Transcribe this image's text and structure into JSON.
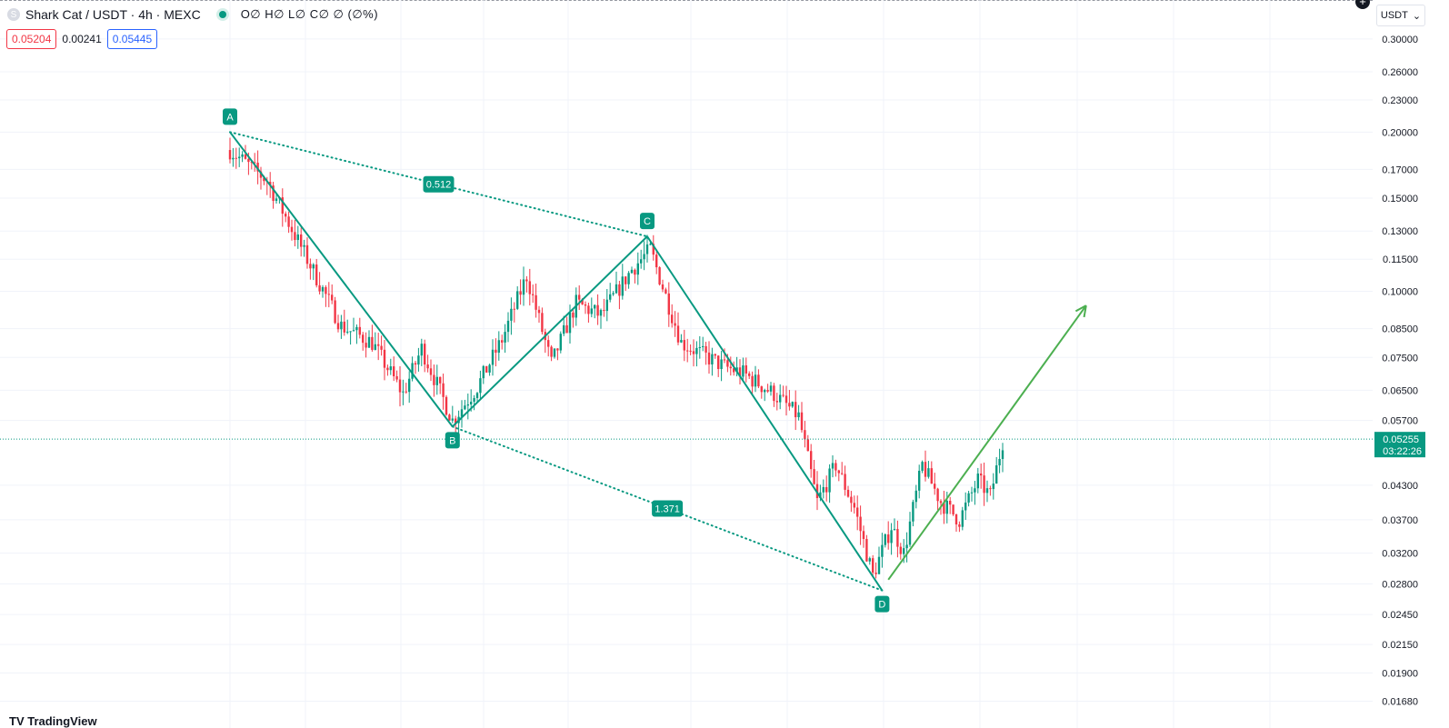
{
  "header": {
    "symbol_icon_letter": "S",
    "title": "Shark Cat / USDT · 4h · MEXC",
    "ohlc": "O∅ H∅ L∅ C∅ ∅ (∅%)",
    "sell_price": "0.05204",
    "spread": "0.00241",
    "buy_price": "0.05445",
    "currency": "USDT",
    "currency_caret": "⌄",
    "plus_icon": "+"
  },
  "footer": {
    "text": "TV TradingView"
  },
  "colors": {
    "up": "#089981",
    "down": "#f23645",
    "pattern": "#089981",
    "projection": "#4caf50",
    "grid": "#f0f3fa"
  },
  "chart_data": {
    "type": "candlestick",
    "scale": "log",
    "ylim": [
      0.0165,
      0.307
    ],
    "y_ticks": [
      "0.30000",
      "0.26000",
      "0.23000",
      "0.20000",
      "0.17000",
      "0.15000",
      "0.13000",
      "0.11500",
      "0.10000",
      "0.08500",
      "0.07500",
      "0.06500",
      "0.05700",
      "0.04300",
      "0.03700",
      "0.03200",
      "0.02800",
      "0.02450",
      "0.02150",
      "0.01900",
      "0.01680"
    ],
    "last_price": {
      "price": "0.05255",
      "countdown": "03:22:26"
    },
    "grid": true,
    "harmonic_pattern": {
      "points": [
        {
          "label": "A",
          "bar": 0,
          "price": 0.2
        },
        {
          "label": "B",
          "bar": 72,
          "price": 0.0555
        },
        {
          "label": "C",
          "bar": 135,
          "price": 0.127
        },
        {
          "label": "D",
          "bar": 211,
          "price": 0.0272
        }
      ],
      "ratios": [
        {
          "label": "0.512",
          "from": "A",
          "to": "C"
        },
        {
          "label": "1.371",
          "from": "B",
          "to": "D"
        }
      ],
      "projection": {
        "from": {
          "bar": 213,
          "price": 0.0285
        },
        "to": {
          "bar": 277,
          "price": 0.094
        }
      }
    },
    "price_waypoints": [
      {
        "bar": 0,
        "price": 0.185
      },
      {
        "bar": 12,
        "price": 0.162
      },
      {
        "bar": 26,
        "price": 0.112
      },
      {
        "bar": 36,
        "price": 0.086
      },
      {
        "bar": 46,
        "price": 0.08
      },
      {
        "bar": 56,
        "price": 0.064
      },
      {
        "bar": 62,
        "price": 0.078
      },
      {
        "bar": 72,
        "price": 0.057
      },
      {
        "bar": 80,
        "price": 0.066
      },
      {
        "bar": 88,
        "price": 0.081
      },
      {
        "bar": 96,
        "price": 0.107
      },
      {
        "bar": 104,
        "price": 0.073
      },
      {
        "bar": 112,
        "price": 0.095
      },
      {
        "bar": 120,
        "price": 0.09
      },
      {
        "bar": 130,
        "price": 0.11
      },
      {
        "bar": 136,
        "price": 0.12
      },
      {
        "bar": 146,
        "price": 0.08
      },
      {
        "bar": 160,
        "price": 0.072
      },
      {
        "bar": 166,
        "price": 0.07
      },
      {
        "bar": 176,
        "price": 0.064
      },
      {
        "bar": 184,
        "price": 0.058
      },
      {
        "bar": 190,
        "price": 0.04
      },
      {
        "bar": 196,
        "price": 0.047
      },
      {
        "bar": 202,
        "price": 0.039
      },
      {
        "bar": 208,
        "price": 0.029
      },
      {
        "bar": 214,
        "price": 0.036
      },
      {
        "bar": 218,
        "price": 0.032
      },
      {
        "bar": 224,
        "price": 0.047
      },
      {
        "bar": 230,
        "price": 0.04
      },
      {
        "bar": 236,
        "price": 0.037
      },
      {
        "bar": 242,
        "price": 0.044
      },
      {
        "bar": 246,
        "price": 0.041
      },
      {
        "bar": 250,
        "price": 0.052
      }
    ]
  }
}
